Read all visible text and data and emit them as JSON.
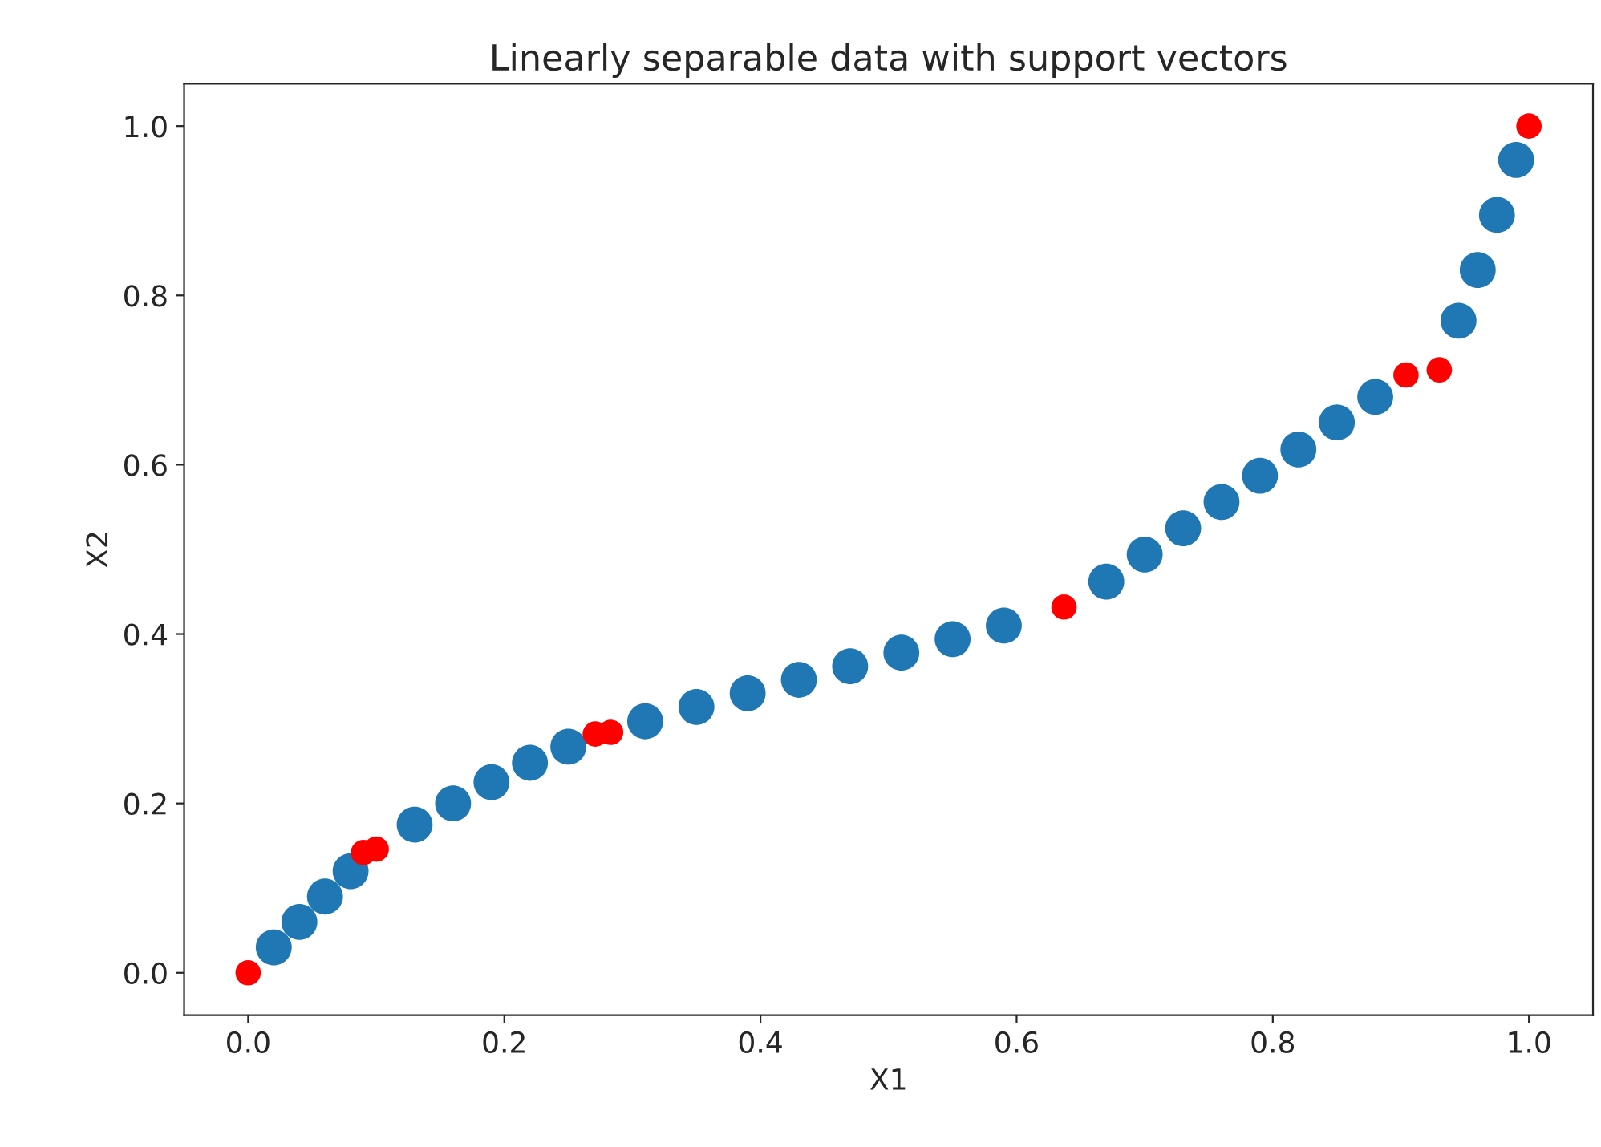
{
  "chart_data": {
    "type": "scatter",
    "title": "Linearly separable data with support vectors",
    "xlabel": "X1",
    "ylabel": "X2",
    "xlim": [
      -0.05,
      1.05
    ],
    "ylim": [
      -0.05,
      1.05
    ],
    "xticks": [
      {
        "value": 0,
        "label": "0.0"
      },
      {
        "value": 0.2,
        "label": "0.2"
      },
      {
        "value": 0.4,
        "label": "0.4"
      },
      {
        "value": 0.6,
        "label": "0.6"
      },
      {
        "value": 0.8,
        "label": "0.8"
      },
      {
        "value": 1,
        "label": "1.0"
      }
    ],
    "yticks": [
      {
        "value": 0,
        "label": "0.0"
      },
      {
        "value": 0.2,
        "label": "0.2"
      },
      {
        "value": 0.4,
        "label": "0.4"
      },
      {
        "value": 0.6,
        "label": "0.6"
      },
      {
        "value": 0.8,
        "label": "0.8"
      },
      {
        "value": 1,
        "label": "1.0"
      }
    ],
    "grid": false,
    "legend": false,
    "marker": "circle",
    "series": [
      {
        "color": "#1f77b4",
        "x": [
          0.02,
          0.04,
          0.06,
          0.08,
          0.13,
          0.16,
          0.19,
          0.22,
          0.25,
          0.31,
          0.35,
          0.39,
          0.43,
          0.47,
          0.51,
          0.55,
          0.59,
          0.67,
          0.7,
          0.73,
          0.76,
          0.79,
          0.82,
          0.85,
          0.88,
          0.945,
          0.96,
          0.975,
          0.99
        ],
        "values": [
          0.03,
          0.06,
          0.09,
          0.12,
          0.175,
          0.2,
          0.225,
          0.248,
          0.267,
          0.297,
          0.314,
          0.33,
          0.346,
          0.362,
          0.378,
          0.394,
          0.41,
          0.462,
          0.494,
          0.525,
          0.556,
          0.587,
          0.618,
          0.65,
          0.68,
          0.77,
          0.83,
          0.895,
          0.96
        ]
      },
      {
        "color": "#ff0000",
        "x": [
          0,
          0.09,
          0.1,
          0.271,
          0.283,
          0.637,
          0.904,
          0.93,
          1.0
        ],
        "values": [
          0,
          0.142,
          0.146,
          0.282,
          0.284,
          0.432,
          0.706,
          0.712,
          1.0
        ]
      }
    ]
  }
}
